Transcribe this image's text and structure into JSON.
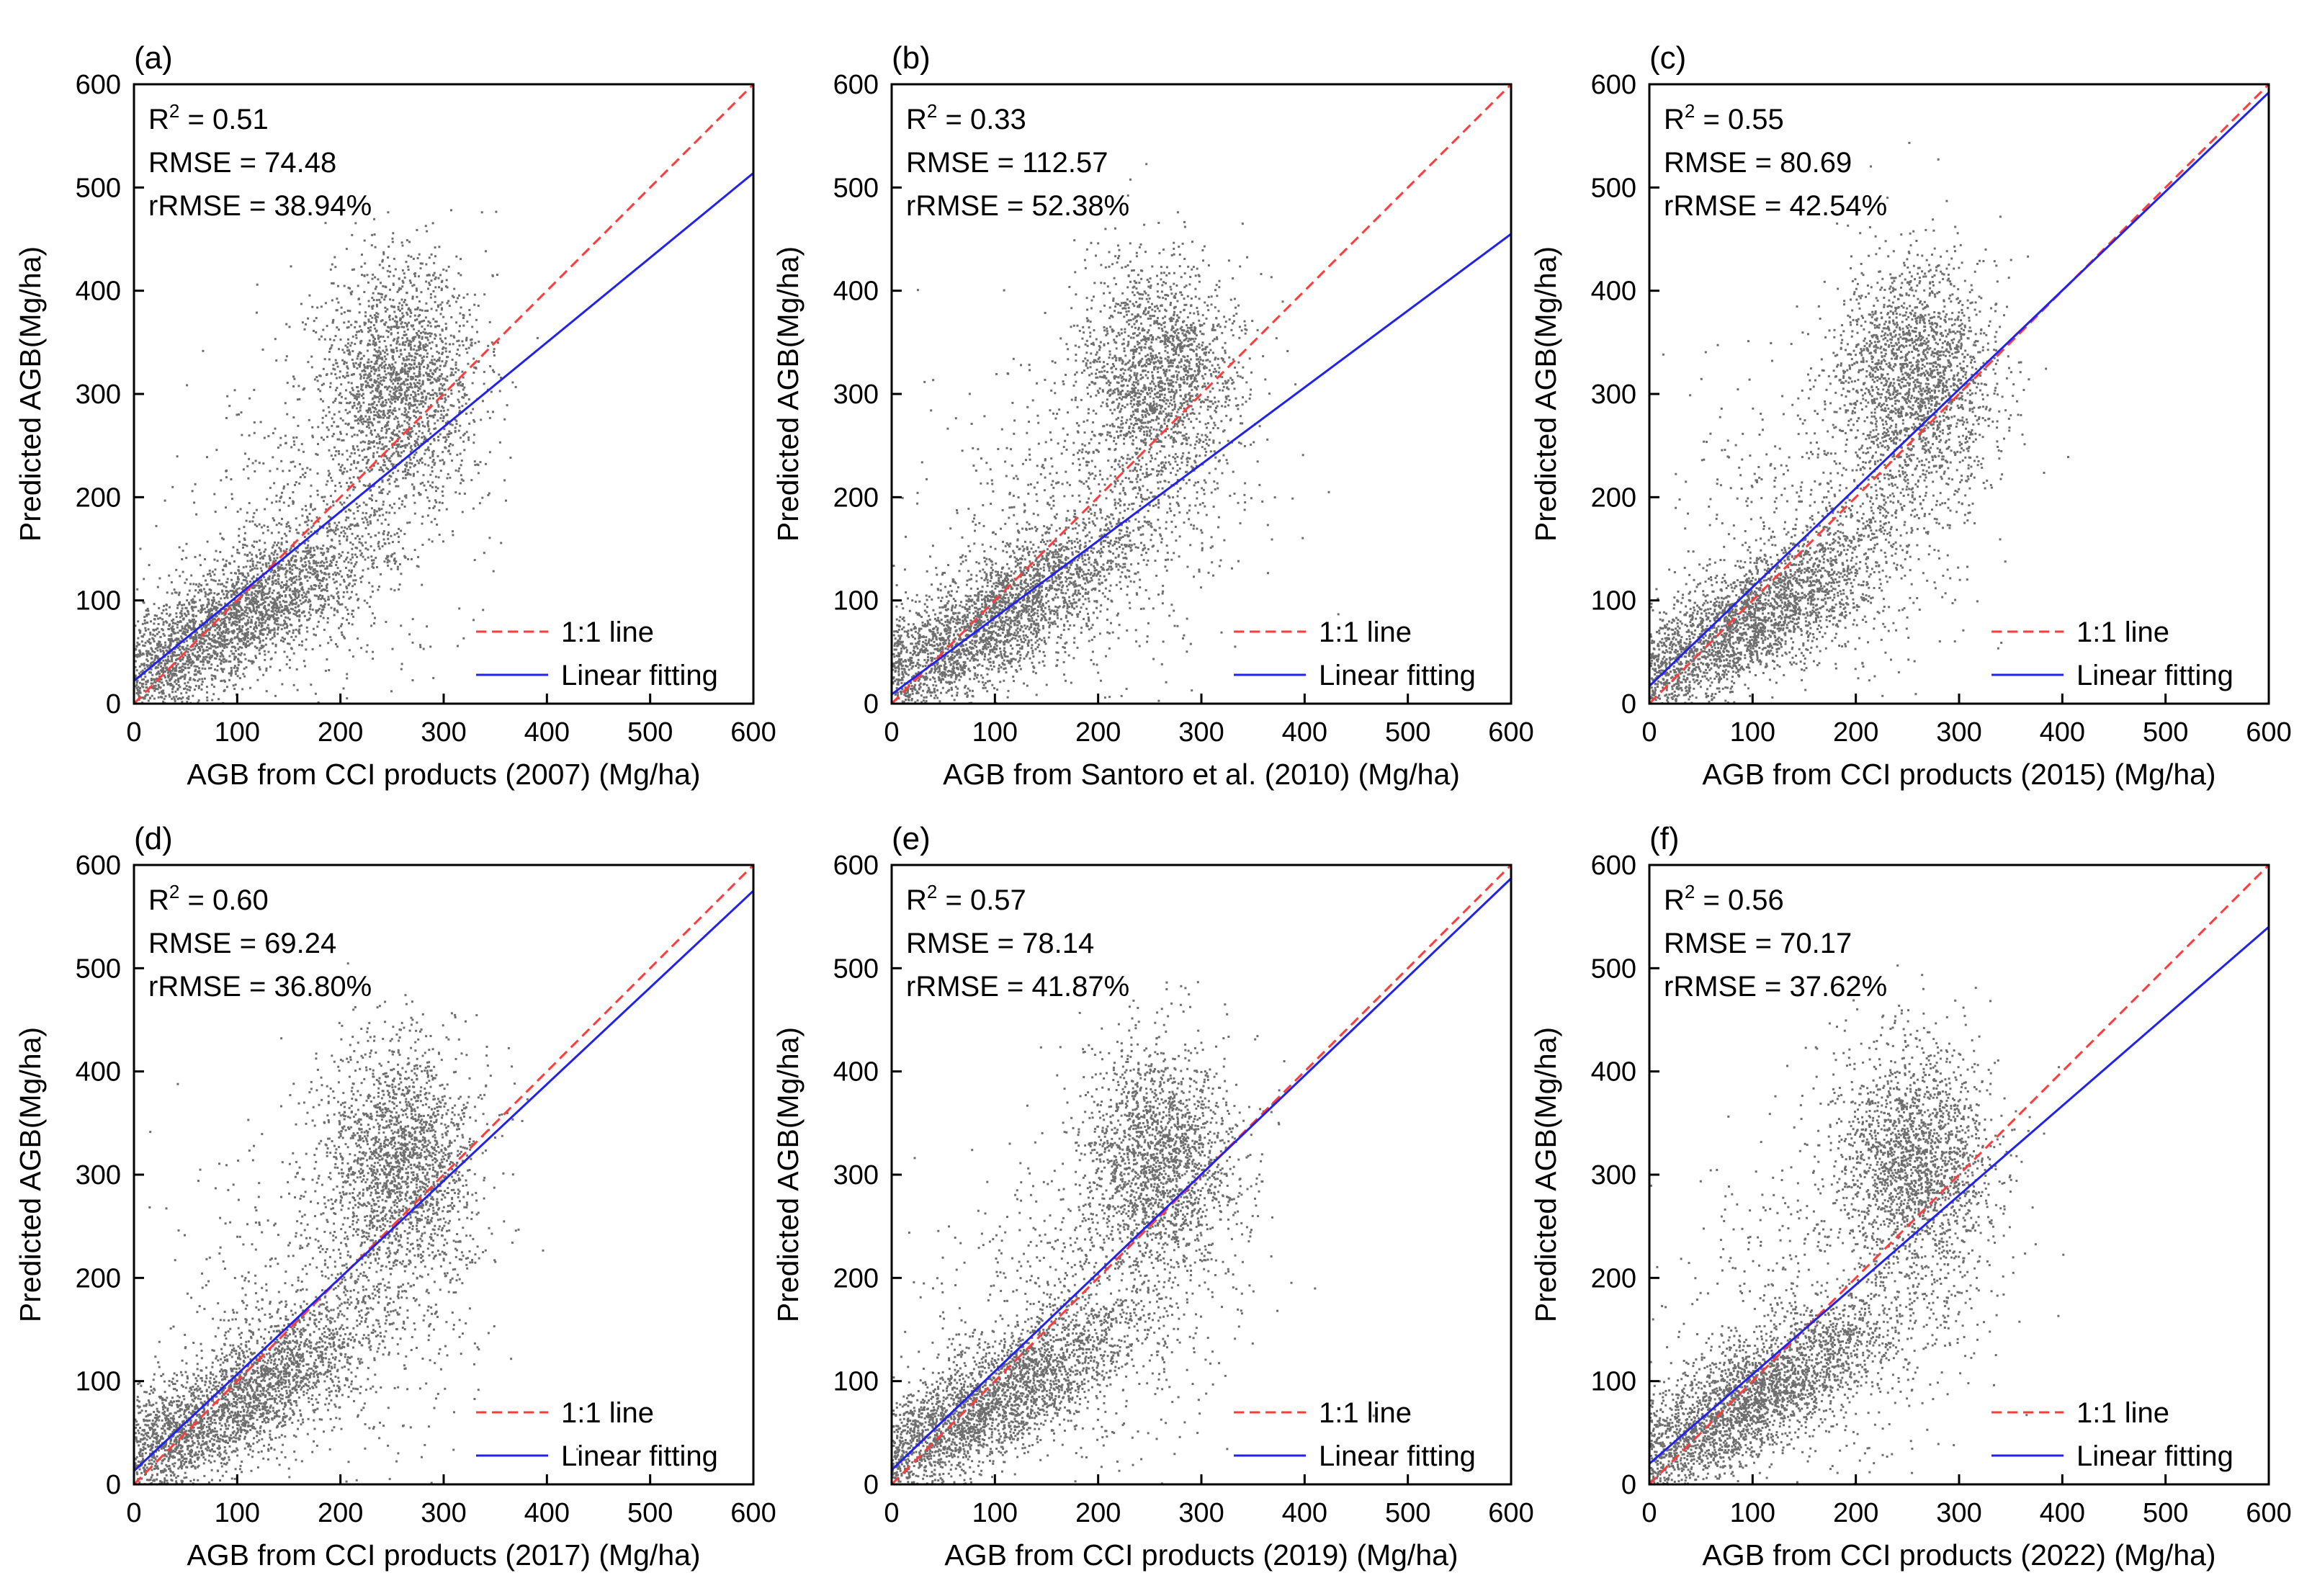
{
  "figure_title": "",
  "colors": {
    "points": "#6e6e6e",
    "one_to_one": "#ff3b3b",
    "fit": "#2222ee",
    "axis": "#000000"
  },
  "legend": {
    "one_to_one": "1:1 line",
    "fit": "Linear fitting"
  },
  "stat_labels": {
    "r2_prefix": "R",
    "r2_sup": "2",
    "r2_eq": " = ",
    "rmse_prefix": "RMSE = ",
    "rrmse_prefix": "rRMSE = "
  },
  "chart_data": [
    {
      "type": "scatter",
      "panel_label": "(a)",
      "title": "",
      "xlabel": "AGB from CCI products (2007) (Mg/ha)",
      "ylabel": "Predicted AGB(Mg/ha)",
      "xlim": [
        0,
        600
      ],
      "ylim": [
        0,
        600
      ],
      "xticks": [
        "0",
        "100",
        "200",
        "300",
        "400",
        "500",
        "600"
      ],
      "yticks": [
        "0",
        "100",
        "200",
        "300",
        "400",
        "500",
        "600"
      ],
      "r2": "0.51",
      "rmse": "74.48",
      "rrmse": "38.94%",
      "fit_line": {
        "x": [
          0,
          600
        ],
        "y": [
          22,
          514
        ]
      },
      "one_to_one_line": {
        "x": [
          0,
          600
        ],
        "y": [
          0,
          600
        ]
      },
      "legend_position": "bottom-right"
    },
    {
      "type": "scatter",
      "panel_label": "(b)",
      "title": "",
      "xlabel": "AGB from Santoro et al. (2010) (Mg/ha)",
      "ylabel": "Predicted AGB(Mg/ha)",
      "xlim": [
        0,
        600
      ],
      "ylim": [
        0,
        600
      ],
      "xticks": [
        "0",
        "100",
        "200",
        "300",
        "400",
        "500",
        "600"
      ],
      "yticks": [
        "0",
        "100",
        "200",
        "300",
        "400",
        "500",
        "600"
      ],
      "r2": "0.33",
      "rmse": "112.57",
      "rrmse": "52.38%",
      "fit_line": {
        "x": [
          0,
          600
        ],
        "y": [
          9,
          455
        ]
      },
      "one_to_one_line": {
        "x": [
          0,
          600
        ],
        "y": [
          0,
          600
        ]
      },
      "legend_position": "bottom-right"
    },
    {
      "type": "scatter",
      "panel_label": "(c)",
      "title": "",
      "xlabel": "AGB from CCI products (2015) (Mg/ha)",
      "ylabel": "Predicted AGB(Mg/ha)",
      "xlim": [
        0,
        600
      ],
      "ylim": [
        0,
        600
      ],
      "xticks": [
        "0",
        "100",
        "200",
        "300",
        "400",
        "500",
        "600"
      ],
      "yticks": [
        "0",
        "100",
        "200",
        "300",
        "400",
        "500",
        "600"
      ],
      "r2": "0.55",
      "rmse": "80.69",
      "rrmse": "42.54%",
      "fit_line": {
        "x": [
          0,
          600
        ],
        "y": [
          17,
          592
        ]
      },
      "one_to_one_line": {
        "x": [
          0,
          600
        ],
        "y": [
          0,
          600
        ]
      },
      "legend_position": "bottom-right"
    },
    {
      "type": "scatter",
      "panel_label": "(d)",
      "title": "",
      "xlabel": "AGB from CCI products (2017) (Mg/ha)",
      "ylabel": "Predicted AGB(Mg/ha)",
      "xlim": [
        0,
        600
      ],
      "ylim": [
        0,
        600
      ],
      "xticks": [
        "0",
        "100",
        "200",
        "300",
        "400",
        "500",
        "600"
      ],
      "yticks": [
        "0",
        "100",
        "200",
        "300",
        "400",
        "500",
        "600"
      ],
      "r2": "0.60",
      "rmse": "69.24",
      "rrmse": "36.80%",
      "fit_line": {
        "x": [
          0,
          600
        ],
        "y": [
          13,
          575
        ]
      },
      "one_to_one_line": {
        "x": [
          0,
          600
        ],
        "y": [
          0,
          600
        ]
      },
      "legend_position": "bottom-right"
    },
    {
      "type": "scatter",
      "panel_label": "(e)",
      "title": "",
      "xlabel": "AGB from CCI products (2019) (Mg/ha)",
      "ylabel": "Predicted AGB(Mg/ha)",
      "xlim": [
        0,
        600
      ],
      "ylim": [
        0,
        600
      ],
      "xticks": [
        "0",
        "100",
        "200",
        "300",
        "400",
        "500",
        "600"
      ],
      "yticks": [
        "0",
        "100",
        "200",
        "300",
        "400",
        "500",
        "600"
      ],
      "r2": "0.57",
      "rmse": "78.14",
      "rrmse": "41.87%",
      "fit_line": {
        "x": [
          0,
          600
        ],
        "y": [
          14,
          587
        ]
      },
      "one_to_one_line": {
        "x": [
          0,
          600
        ],
        "y": [
          0,
          600
        ]
      },
      "legend_position": "bottom-right"
    },
    {
      "type": "scatter",
      "panel_label": "(f)",
      "title": "",
      "xlabel": "AGB from CCI products (2022) (Mg/ha)",
      "ylabel": "Predicted AGB(Mg/ha)",
      "xlim": [
        0,
        600
      ],
      "ylim": [
        0,
        600
      ],
      "xticks": [
        "0",
        "100",
        "200",
        "300",
        "400",
        "500",
        "600"
      ],
      "yticks": [
        "0",
        "100",
        "200",
        "300",
        "400",
        "500",
        "600"
      ],
      "r2": "0.56",
      "rmse": "70.17",
      "rrmse": "37.62%",
      "fit_line": {
        "x": [
          0,
          600
        ],
        "y": [
          20,
          540
        ]
      },
      "one_to_one_line": {
        "x": [
          0,
          600
        ],
        "y": [
          0,
          600
        ]
      },
      "legend_position": "bottom-right"
    }
  ]
}
